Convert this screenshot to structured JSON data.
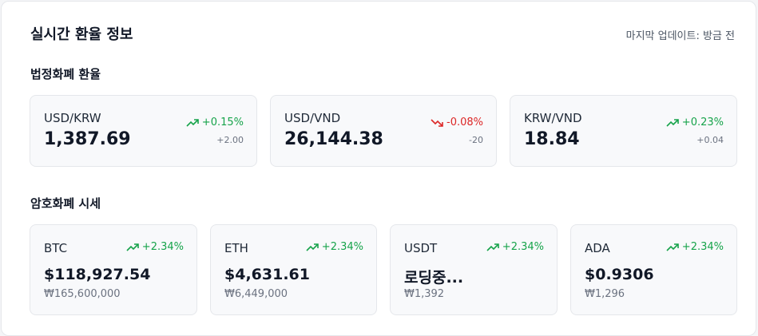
{
  "header": {
    "title": "실시간 환율 정보",
    "updated": "마지막 업데이트: 방금 전"
  },
  "fiat": {
    "section_title": "법정화폐 환율",
    "cards": [
      {
        "pair": "USD/KRW",
        "rate": "1,387.69",
        "change": "+0.15%",
        "delta": "+2.00",
        "trend": "up"
      },
      {
        "pair": "USD/VND",
        "rate": "26,144.38",
        "change": "-0.08%",
        "delta": "-20",
        "trend": "down"
      },
      {
        "pair": "KRW/VND",
        "rate": "18.84",
        "change": "+0.23%",
        "delta": "+0.04",
        "trend": "up"
      }
    ]
  },
  "crypto": {
    "section_title": "암호화폐 시세",
    "cards": [
      {
        "symbol": "BTC",
        "usd": "$118,927.54",
        "krw": "₩165,600,000",
        "change": "+2.34%",
        "trend": "up"
      },
      {
        "symbol": "ETH",
        "usd": "$4,631.61",
        "krw": "₩6,449,000",
        "change": "+2.34%",
        "trend": "up"
      },
      {
        "symbol": "USDT",
        "usd": "로딩중...",
        "krw": "₩1,392",
        "change": "+2.34%",
        "trend": "up"
      },
      {
        "symbol": "ADA",
        "usd": "$0.9306",
        "krw": "₩1,296",
        "change": "+2.34%",
        "trend": "up"
      }
    ]
  },
  "icons": {
    "up": "trending-up-icon",
    "down": "trending-down-icon"
  },
  "colors": {
    "up": "#16a34a",
    "down": "#dc2626"
  }
}
